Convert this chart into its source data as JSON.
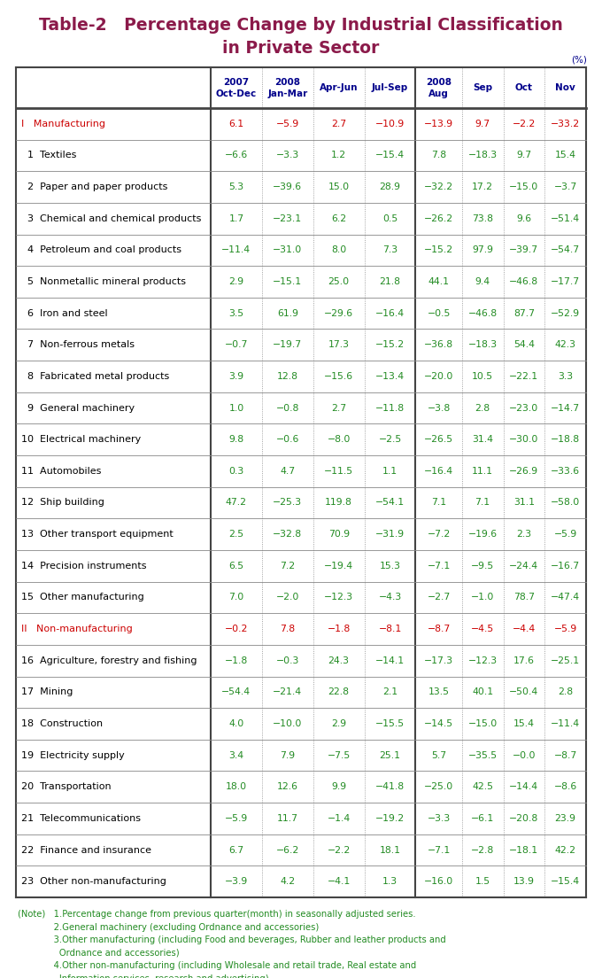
{
  "title_line1": "Table-2   Percentage Change by Industrial Classification",
  "title_line2": "in Private Sector",
  "title_color": "#8B1A4A",
  "header_color": "#00008B",
  "unit_label": "(%)",
  "col_headers_line1": [
    "2007",
    "2008",
    "",
    "",
    "2008",
    "",
    "",
    ""
  ],
  "col_headers_line2": [
    "Oct-Dec",
    "Jan-Mar",
    "Apr-Jun",
    "Jul-Sep",
    "Aug",
    "Sep",
    "Oct",
    "Nov"
  ],
  "rows": [
    {
      "label": "I   Manufacturing",
      "label_color": "#CC0000",
      "bold": true,
      "values": [
        "6.1",
        "−5.9",
        "2.7",
        "−10.9",
        "−13.9",
        "9.7",
        "−2.2",
        "−33.2"
      ],
      "val_color": "#CC0000"
    },
    {
      "label": "  1  Textiles",
      "label_color": "#000000",
      "bold": false,
      "values": [
        "−6.6",
        "−3.3",
        "1.2",
        "−15.4",
        "7.8",
        "−18.3",
        "9.7",
        "15.4"
      ],
      "val_color": "#228B22"
    },
    {
      "label": "  2  Paper and paper products",
      "label_color": "#000000",
      "bold": false,
      "values": [
        "5.3",
        "−39.6",
        "15.0",
        "28.9",
        "−32.2",
        "17.2",
        "−15.0",
        "−3.7"
      ],
      "val_color": "#228B22"
    },
    {
      "label": "  3  Chemical and chemical products",
      "label_color": "#000000",
      "bold": false,
      "values": [
        "1.7",
        "−23.1",
        "6.2",
        "0.5",
        "−26.2",
        "73.8",
        "9.6",
        "−51.4"
      ],
      "val_color": "#228B22"
    },
    {
      "label": "  4  Petroleum and coal products",
      "label_color": "#000000",
      "bold": false,
      "values": [
        "−11.4",
        "−31.0",
        "8.0",
        "7.3",
        "−15.2",
        "97.9",
        "−39.7",
        "−54.7"
      ],
      "val_color": "#228B22"
    },
    {
      "label": "  5  Nonmetallic mineral products",
      "label_color": "#000000",
      "bold": false,
      "values": [
        "2.9",
        "−15.1",
        "25.0",
        "21.8",
        "44.1",
        "9.4",
        "−46.8",
        "−17.7"
      ],
      "val_color": "#228B22"
    },
    {
      "label": "  6  Iron and steel",
      "label_color": "#000000",
      "bold": false,
      "values": [
        "3.5",
        "61.9",
        "−29.6",
        "−16.4",
        "−0.5",
        "−46.8",
        "87.7",
        "−52.9"
      ],
      "val_color": "#228B22"
    },
    {
      "label": "  7  Non-ferrous metals",
      "label_color": "#000000",
      "bold": false,
      "values": [
        "−0.7",
        "−19.7",
        "17.3",
        "−15.2",
        "−36.8",
        "−18.3",
        "54.4",
        "42.3"
      ],
      "val_color": "#228B22"
    },
    {
      "label": "  8  Fabricated metal products",
      "label_color": "#000000",
      "bold": false,
      "values": [
        "3.9",
        "12.8",
        "−15.6",
        "−13.4",
        "−20.0",
        "10.5",
        "−22.1",
        "3.3"
      ],
      "val_color": "#228B22"
    },
    {
      "label": "  9  General machinery",
      "label_color": "#000000",
      "bold": false,
      "values": [
        "1.0",
        "−0.8",
        "2.7",
        "−11.8",
        "−3.8",
        "2.8",
        "−23.0",
        "−14.7"
      ],
      "val_color": "#228B22"
    },
    {
      "label": "10  Electrical machinery",
      "label_color": "#000000",
      "bold": false,
      "values": [
        "9.8",
        "−0.6",
        "−8.0",
        "−2.5",
        "−26.5",
        "31.4",
        "−30.0",
        "−18.8"
      ],
      "val_color": "#228B22"
    },
    {
      "label": "11  Automobiles",
      "label_color": "#000000",
      "bold": false,
      "values": [
        "0.3",
        "4.7",
        "−11.5",
        "1.1",
        "−16.4",
        "11.1",
        "−26.9",
        "−33.6"
      ],
      "val_color": "#228B22"
    },
    {
      "label": "12  Ship building",
      "label_color": "#000000",
      "bold": false,
      "values": [
        "47.2",
        "−25.3",
        "119.8",
        "−54.1",
        "7.1",
        "7.1",
        "31.1",
        "−58.0"
      ],
      "val_color": "#228B22"
    },
    {
      "label": "13  Other transport equipment",
      "label_color": "#000000",
      "bold": false,
      "values": [
        "2.5",
        "−32.8",
        "70.9",
        "−31.9",
        "−7.2",
        "−19.6",
        "2.3",
        "−5.9"
      ],
      "val_color": "#228B22"
    },
    {
      "label": "14  Precision instruments",
      "label_color": "#000000",
      "bold": false,
      "values": [
        "6.5",
        "7.2",
        "−19.4",
        "15.3",
        "−7.1",
        "−9.5",
        "−24.4",
        "−16.7"
      ],
      "val_color": "#228B22"
    },
    {
      "label": "15  Other manufacturing",
      "label_color": "#000000",
      "bold": false,
      "values": [
        "7.0",
        "−2.0",
        "−12.3",
        "−4.3",
        "−2.7",
        "−1.0",
        "78.7",
        "−47.4"
      ],
      "val_color": "#228B22"
    },
    {
      "label": "II   Non-manufacturing",
      "label_color": "#CC0000",
      "bold": true,
      "values": [
        "−0.2",
        "7.8",
        "−1.8",
        "−8.1",
        "−8.7",
        "−4.5",
        "−4.4",
        "−5.9"
      ],
      "val_color": "#CC0000"
    },
    {
      "label": "16  Agriculture, forestry and fishing",
      "label_color": "#000000",
      "bold": false,
      "values": [
        "−1.8",
        "−0.3",
        "24.3",
        "−14.1",
        "−17.3",
        "−12.3",
        "17.6",
        "−25.1"
      ],
      "val_color": "#228B22"
    },
    {
      "label": "17  Mining",
      "label_color": "#000000",
      "bold": false,
      "values": [
        "−54.4",
        "−21.4",
        "22.8",
        "2.1",
        "13.5",
        "40.1",
        "−50.4",
        "2.8"
      ],
      "val_color": "#228B22"
    },
    {
      "label": "18  Construction",
      "label_color": "#000000",
      "bold": false,
      "values": [
        "4.0",
        "−10.0",
        "2.9",
        "−15.5",
        "−14.5",
        "−15.0",
        "15.4",
        "−11.4"
      ],
      "val_color": "#228B22"
    },
    {
      "label": "19  Electricity supply",
      "label_color": "#000000",
      "bold": false,
      "values": [
        "3.4",
        "7.9",
        "−7.5",
        "25.1",
        "5.7",
        "−35.5",
        "−0.0",
        "−8.7"
      ],
      "val_color": "#228B22"
    },
    {
      "label": "20  Transportation",
      "label_color": "#000000",
      "bold": false,
      "values": [
        "18.0",
        "12.6",
        "9.9",
        "−41.8",
        "−25.0",
        "42.5",
        "−14.4",
        "−8.6"
      ],
      "val_color": "#228B22"
    },
    {
      "label": "21  Telecommunications",
      "label_color": "#000000",
      "bold": false,
      "values": [
        "−5.9",
        "11.7",
        "−1.4",
        "−19.2",
        "−3.3",
        "−6.1",
        "−20.8",
        "23.9"
      ],
      "val_color": "#228B22"
    },
    {
      "label": "22  Finance and insurance",
      "label_color": "#000000",
      "bold": false,
      "values": [
        "6.7",
        "−6.2",
        "−2.2",
        "18.1",
        "−7.1",
        "−2.8",
        "−18.1",
        "42.2"
      ],
      "val_color": "#228B22"
    },
    {
      "label": "23  Other non-manufacturing",
      "label_color": "#000000",
      "bold": false,
      "values": [
        "−3.9",
        "4.2",
        "−4.1",
        "1.3",
        "−16.0",
        "1.5",
        "13.9",
        "−15.4"
      ],
      "val_color": "#228B22"
    }
  ],
  "note_color": "#228B22",
  "note_label_color": "#000000",
  "background_color": "#FFFFFF",
  "table_border_color": "#444444",
  "row_line_color": "#888888",
  "dotted_line_color": "#888888"
}
